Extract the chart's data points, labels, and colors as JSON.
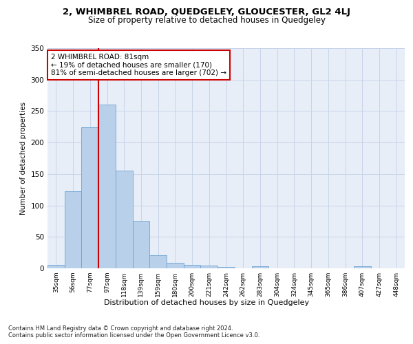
{
  "title": "2, WHIMBREL ROAD, QUEDGELEY, GLOUCESTER, GL2 4LJ",
  "subtitle": "Size of property relative to detached houses in Quedgeley",
  "xlabel": "Distribution of detached houses by size in Quedgeley",
  "ylabel": "Number of detached properties",
  "bar_values": [
    6,
    122,
    224,
    260,
    155,
    76,
    21,
    9,
    5,
    4,
    2,
    0,
    3,
    0,
    0,
    0,
    0,
    0,
    3,
    0,
    0
  ],
  "bar_labels": [
    "35sqm",
    "56sqm",
    "77sqm",
    "97sqm",
    "118sqm",
    "139sqm",
    "159sqm",
    "180sqm",
    "200sqm",
    "221sqm",
    "242sqm",
    "262sqm",
    "283sqm",
    "304sqm",
    "324sqm",
    "345sqm",
    "365sqm",
    "386sqm",
    "407sqm",
    "427sqm",
    "448sqm"
  ],
  "bar_color": "#b8d0ea",
  "bar_edge_color": "#6da4d4",
  "grid_color": "#c8d4e8",
  "background_color": "#e8eef8",
  "vline_color": "#cc0000",
  "vline_pos": 2.5,
  "annotation_text": "2 WHIMBREL ROAD: 81sqm\n← 19% of detached houses are smaller (170)\n81% of semi-detached houses are larger (702) →",
  "annotation_box_color": "#ffffff",
  "annotation_box_edge": "#cc0000",
  "footer": "Contains HM Land Registry data © Crown copyright and database right 2024.\nContains public sector information licensed under the Open Government Licence v3.0.",
  "ylim": [
    0,
    350
  ],
  "yticks": [
    0,
    50,
    100,
    150,
    200,
    250,
    300,
    350
  ],
  "figsize": [
    6.0,
    5.0
  ],
  "dpi": 100
}
